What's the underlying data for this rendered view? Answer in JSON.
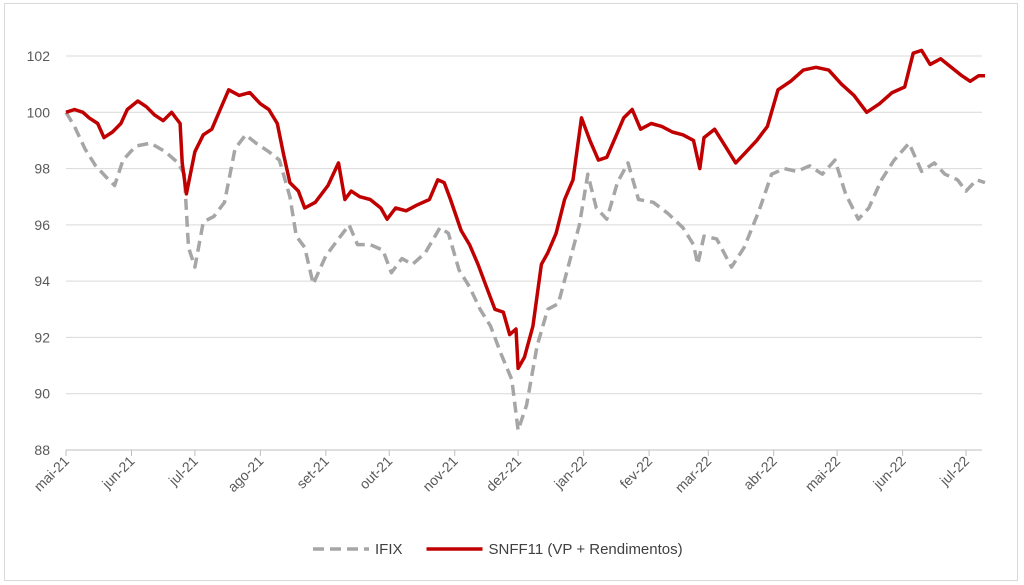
{
  "chart_data": {
    "type": "line",
    "title": "",
    "xlabel": "",
    "ylabel": "",
    "ylim": [
      88,
      103
    ],
    "y_ticks": [
      "88",
      "90",
      "92",
      "94",
      "96",
      "98",
      "100",
      "102"
    ],
    "x_range": [
      "2021-05-01",
      "2022-07-10"
    ],
    "x_tick_dates": [
      "2021-05-01",
      "2021-06-01",
      "2021-07-01",
      "2021-08-01",
      "2021-09-01",
      "2021-10-01",
      "2021-11-01",
      "2021-12-01",
      "2022-01-01",
      "2022-02-01",
      "2022-03-01",
      "2022-04-01",
      "2022-05-01",
      "2022-06-01",
      "2022-07-01"
    ],
    "x_tick_labels": [
      "mai-21",
      "jun-21",
      "jul-21",
      "ago-21",
      "set-21",
      "out-21",
      "nov-21",
      "dez-21",
      "jan-22",
      "fev-22",
      "mar-22",
      "abr-22",
      "mai-22",
      "jun-22",
      "jul-22"
    ],
    "grid": "horizontal",
    "legend_position": "bottom",
    "series": [
      {
        "name": "IFIX",
        "color": "#a6a6a6",
        "style": "dashed",
        "points": [
          [
            "2021-05-01",
            100.0
          ],
          [
            "2021-05-05",
            99.5
          ],
          [
            "2021-05-10",
            98.7
          ],
          [
            "2021-05-15",
            98.1
          ],
          [
            "2021-05-20",
            97.7
          ],
          [
            "2021-05-24",
            97.4
          ],
          [
            "2021-05-28",
            98.3
          ],
          [
            "2021-06-03",
            98.8
          ],
          [
            "2021-06-10",
            98.9
          ],
          [
            "2021-06-17",
            98.6
          ],
          [
            "2021-06-23",
            98.2
          ],
          [
            "2021-06-26",
            97.8
          ],
          [
            "2021-06-28",
            95.2
          ],
          [
            "2021-07-01",
            94.5
          ],
          [
            "2021-07-05",
            96.1
          ],
          [
            "2021-07-10",
            96.3
          ],
          [
            "2021-07-15",
            96.8
          ],
          [
            "2021-07-20",
            98.7
          ],
          [
            "2021-07-25",
            99.2
          ],
          [
            "2021-07-30",
            98.9
          ],
          [
            "2021-08-05",
            98.6
          ],
          [
            "2021-08-10",
            98.3
          ],
          [
            "2021-08-15",
            97.0
          ],
          [
            "2021-08-18",
            95.6
          ],
          [
            "2021-08-22",
            95.2
          ],
          [
            "2021-08-26",
            93.9
          ],
          [
            "2021-09-01",
            94.9
          ],
          [
            "2021-09-06",
            95.4
          ],
          [
            "2021-09-12",
            96.0
          ],
          [
            "2021-09-16",
            95.3
          ],
          [
            "2021-09-22",
            95.3
          ],
          [
            "2021-09-28",
            95.1
          ],
          [
            "2021-10-02",
            94.3
          ],
          [
            "2021-10-07",
            94.8
          ],
          [
            "2021-10-12",
            94.6
          ],
          [
            "2021-10-18",
            95.0
          ],
          [
            "2021-10-25",
            95.9
          ],
          [
            "2021-10-29",
            95.7
          ],
          [
            "2021-11-03",
            94.4
          ],
          [
            "2021-11-08",
            93.8
          ],
          [
            "2021-11-13",
            93.0
          ],
          [
            "2021-11-18",
            92.4
          ],
          [
            "2021-11-23",
            91.4
          ],
          [
            "2021-11-28",
            90.5
          ],
          [
            "2021-12-01",
            88.7
          ],
          [
            "2021-12-05",
            89.6
          ],
          [
            "2021-12-10",
            91.7
          ],
          [
            "2021-12-15",
            93.0
          ],
          [
            "2021-12-20",
            93.2
          ],
          [
            "2021-12-25",
            94.6
          ],
          [
            "2021-12-30",
            96.0
          ],
          [
            "2022-01-03",
            97.8
          ],
          [
            "2022-01-07",
            96.6
          ],
          [
            "2022-01-12",
            96.2
          ],
          [
            "2022-01-17",
            97.5
          ],
          [
            "2022-01-22",
            98.2
          ],
          [
            "2022-01-27",
            96.9
          ],
          [
            "2022-02-03",
            96.8
          ],
          [
            "2022-02-10",
            96.4
          ],
          [
            "2022-02-17",
            95.9
          ],
          [
            "2022-02-22",
            95.3
          ],
          [
            "2022-02-24",
            94.6
          ],
          [
            "2022-02-27",
            95.6
          ],
          [
            "2022-03-05",
            95.5
          ],
          [
            "2022-03-12",
            94.5
          ],
          [
            "2022-03-18",
            95.2
          ],
          [
            "2022-03-25",
            96.5
          ],
          [
            "2022-03-31",
            97.8
          ],
          [
            "2022-04-06",
            98.0
          ],
          [
            "2022-04-12",
            97.9
          ],
          [
            "2022-04-18",
            98.1
          ],
          [
            "2022-04-24",
            97.8
          ],
          [
            "2022-04-30",
            98.3
          ],
          [
            "2022-05-05",
            97.1
          ],
          [
            "2022-05-11",
            96.2
          ],
          [
            "2022-05-16",
            96.6
          ],
          [
            "2022-05-22",
            97.6
          ],
          [
            "2022-05-28",
            98.3
          ],
          [
            "2022-06-04",
            98.9
          ],
          [
            "2022-06-10",
            97.9
          ],
          [
            "2022-06-16",
            98.2
          ],
          [
            "2022-06-21",
            97.8
          ],
          [
            "2022-06-27",
            97.6
          ],
          [
            "2022-07-01",
            97.2
          ],
          [
            "2022-07-06",
            97.6
          ],
          [
            "2022-07-10",
            97.5
          ]
        ]
      },
      {
        "name": "SNFF11 (VP + Rendimentos)",
        "color": "#c00000",
        "style": "solid",
        "points": [
          [
            "2021-05-01",
            100.0
          ],
          [
            "2021-05-05",
            100.1
          ],
          [
            "2021-05-09",
            100.0
          ],
          [
            "2021-05-12",
            99.8
          ],
          [
            "2021-05-16",
            99.6
          ],
          [
            "2021-05-19",
            99.1
          ],
          [
            "2021-05-23",
            99.3
          ],
          [
            "2021-05-27",
            99.6
          ],
          [
            "2021-05-30",
            100.1
          ],
          [
            "2021-06-04",
            100.4
          ],
          [
            "2021-06-08",
            100.2
          ],
          [
            "2021-06-12",
            99.9
          ],
          [
            "2021-06-16",
            99.7
          ],
          [
            "2021-06-20",
            100.0
          ],
          [
            "2021-06-24",
            99.6
          ],
          [
            "2021-06-25",
            98.2
          ],
          [
            "2021-06-27",
            97.1
          ],
          [
            "2021-07-01",
            98.6
          ],
          [
            "2021-07-05",
            99.2
          ],
          [
            "2021-07-09",
            99.4
          ],
          [
            "2021-07-13",
            100.1
          ],
          [
            "2021-07-17",
            100.8
          ],
          [
            "2021-07-22",
            100.6
          ],
          [
            "2021-07-27",
            100.7
          ],
          [
            "2021-08-01",
            100.3
          ],
          [
            "2021-08-05",
            100.1
          ],
          [
            "2021-08-09",
            99.6
          ],
          [
            "2021-08-12",
            98.5
          ],
          [
            "2021-08-15",
            97.5
          ],
          [
            "2021-08-19",
            97.2
          ],
          [
            "2021-08-22",
            96.6
          ],
          [
            "2021-08-27",
            96.8
          ],
          [
            "2021-09-02",
            97.4
          ],
          [
            "2021-09-07",
            98.2
          ],
          [
            "2021-09-10",
            96.9
          ],
          [
            "2021-09-13",
            97.2
          ],
          [
            "2021-09-17",
            97.0
          ],
          [
            "2021-09-22",
            96.9
          ],
          [
            "2021-09-27",
            96.6
          ],
          [
            "2021-09-30",
            96.2
          ],
          [
            "2021-10-04",
            96.6
          ],
          [
            "2021-10-09",
            96.5
          ],
          [
            "2021-10-14",
            96.7
          ],
          [
            "2021-10-20",
            96.9
          ],
          [
            "2021-10-24",
            97.6
          ],
          [
            "2021-10-27",
            97.5
          ],
          [
            "2021-10-30",
            96.9
          ],
          [
            "2021-11-04",
            95.8
          ],
          [
            "2021-11-08",
            95.3
          ],
          [
            "2021-11-12",
            94.6
          ],
          [
            "2021-11-16",
            93.8
          ],
          [
            "2021-11-20",
            93.0
          ],
          [
            "2021-11-24",
            92.9
          ],
          [
            "2021-11-27",
            92.1
          ],
          [
            "2021-11-30",
            92.3
          ],
          [
            "2021-12-01",
            90.9
          ],
          [
            "2021-12-04",
            91.3
          ],
          [
            "2021-12-08",
            92.4
          ],
          [
            "2021-12-12",
            94.6
          ],
          [
            "2021-12-15",
            95.0
          ],
          [
            "2021-12-19",
            95.7
          ],
          [
            "2021-12-23",
            96.9
          ],
          [
            "2021-12-27",
            97.6
          ],
          [
            "2021-12-31",
            99.8
          ],
          [
            "2022-01-04",
            99.0
          ],
          [
            "2022-01-08",
            98.3
          ],
          [
            "2022-01-12",
            98.4
          ],
          [
            "2022-01-16",
            99.1
          ],
          [
            "2022-01-20",
            99.8
          ],
          [
            "2022-01-24",
            100.1
          ],
          [
            "2022-01-28",
            99.4
          ],
          [
            "2022-02-02",
            99.6
          ],
          [
            "2022-02-07",
            99.5
          ],
          [
            "2022-02-12",
            99.3
          ],
          [
            "2022-02-17",
            99.2
          ],
          [
            "2022-02-22",
            99.0
          ],
          [
            "2022-02-25",
            98.0
          ],
          [
            "2022-02-27",
            99.1
          ],
          [
            "2022-03-04",
            99.4
          ],
          [
            "2022-03-09",
            98.8
          ],
          [
            "2022-03-14",
            98.2
          ],
          [
            "2022-03-19",
            98.6
          ],
          [
            "2022-03-24",
            99.0
          ],
          [
            "2022-03-29",
            99.5
          ],
          [
            "2022-04-03",
            100.8
          ],
          [
            "2022-04-09",
            101.1
          ],
          [
            "2022-04-15",
            101.5
          ],
          [
            "2022-04-21",
            101.6
          ],
          [
            "2022-04-27",
            101.5
          ],
          [
            "2022-05-03",
            101.0
          ],
          [
            "2022-05-09",
            100.6
          ],
          [
            "2022-05-15",
            100.0
          ],
          [
            "2022-05-21",
            100.3
          ],
          [
            "2022-05-27",
            100.7
          ],
          [
            "2022-06-02",
            100.9
          ],
          [
            "2022-06-06",
            102.1
          ],
          [
            "2022-06-10",
            102.2
          ],
          [
            "2022-06-14",
            101.7
          ],
          [
            "2022-06-19",
            101.9
          ],
          [
            "2022-06-24",
            101.6
          ],
          [
            "2022-06-29",
            101.3
          ],
          [
            "2022-07-03",
            101.1
          ],
          [
            "2022-07-07",
            101.3
          ],
          [
            "2022-07-10",
            101.3
          ]
        ]
      }
    ]
  }
}
